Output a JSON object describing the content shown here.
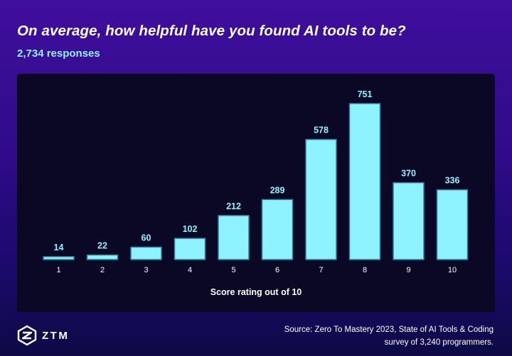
{
  "header": {
    "title": "On average, how helpful have you found AI tools to be?",
    "subtitle": "2,734 responses"
  },
  "chart_data": {
    "type": "bar",
    "title": "On average, how helpful have you found AI tools to be?",
    "subtitle": "2,734 responses",
    "categories": [
      "1",
      "2",
      "3",
      "4",
      "5",
      "6",
      "7",
      "8",
      "9",
      "10"
    ],
    "values": [
      14,
      22,
      60,
      102,
      212,
      289,
      578,
      751,
      370,
      336
    ],
    "xlabel": "Score rating out of 10",
    "ylabel": "",
    "ylim": [
      0,
      751
    ],
    "grid": false,
    "legend": "none",
    "colors": {
      "bar": "#8ff3ff",
      "bar_border": "#2a7f9a",
      "label": "#8ff3ff",
      "panel": "#0b0826"
    }
  },
  "footer": {
    "logo_text": "ZTM",
    "source_line1": "Source: Zero To Mastery 2023, State of AI Tools & Coding",
    "source_line2": "survey of 3,240 programmers."
  }
}
